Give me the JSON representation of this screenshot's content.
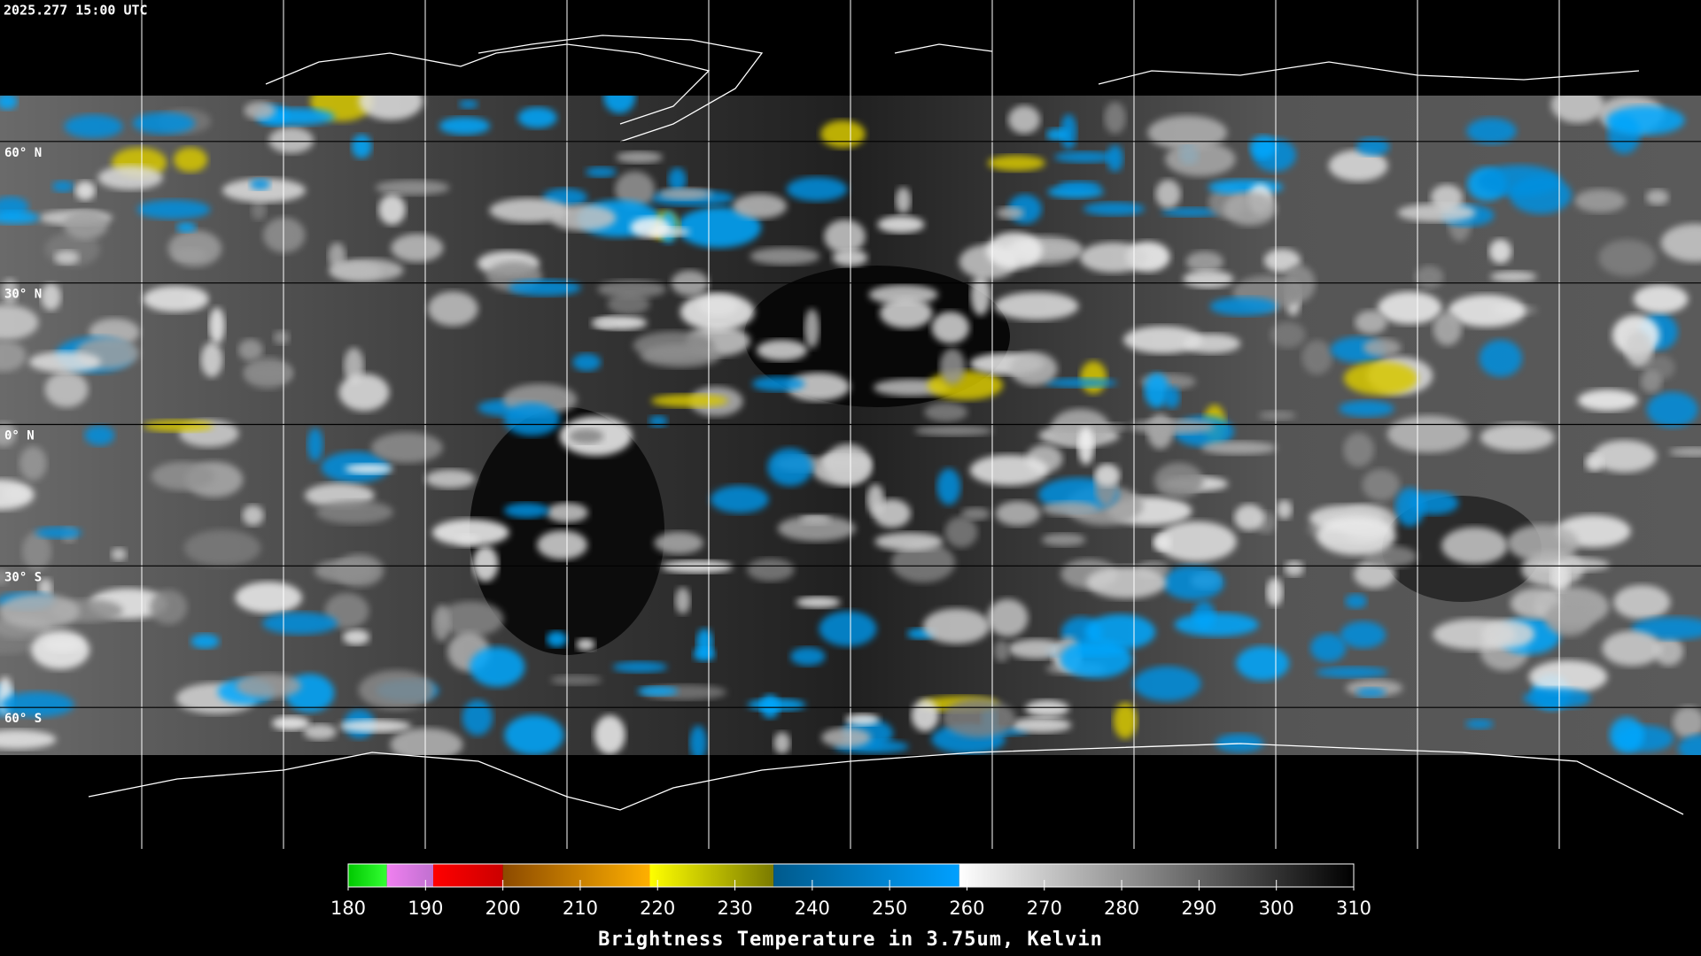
{
  "header": {
    "timestamp": "2025.277 15:00 UTC"
  },
  "map": {
    "lat_range": [
      90,
      -90
    ],
    "latitudes": [
      {
        "value": 60,
        "label": "60° N"
      },
      {
        "value": 30,
        "label": "30° N"
      },
      {
        "value": 0,
        "label": "0° N"
      },
      {
        "value": -30,
        "label": "30° S"
      },
      {
        "value": -60,
        "label": "60° S"
      }
    ]
  },
  "colorbar": {
    "range": [
      180,
      310
    ],
    "ticks": [
      180,
      190,
      200,
      210,
      220,
      230,
      240,
      250,
      260,
      270,
      280,
      290,
      300,
      310
    ],
    "segments": [
      {
        "from": 180,
        "to": 185,
        "colors": [
          "#00c800",
          "#33ff33"
        ]
      },
      {
        "from": 185,
        "to": 191,
        "colors": [
          "#f080f0",
          "#c070d0"
        ]
      },
      {
        "from": 191,
        "to": 200,
        "colors": [
          "#ff0000",
          "#cc0000"
        ]
      },
      {
        "from": 200,
        "to": 219,
        "colors": [
          "#8c4a00",
          "#ffb000"
        ]
      },
      {
        "from": 219,
        "to": 235,
        "colors": [
          "#ffff00",
          "#7a7a00"
        ]
      },
      {
        "from": 235,
        "to": 259,
        "colors": [
          "#005a8c",
          "#00a0ff"
        ]
      },
      {
        "from": 259,
        "to": 310,
        "colors": [
          "#ffffff",
          "#000000"
        ]
      }
    ],
    "label": "Brightness Temperature in 3.75um, Kelvin"
  }
}
